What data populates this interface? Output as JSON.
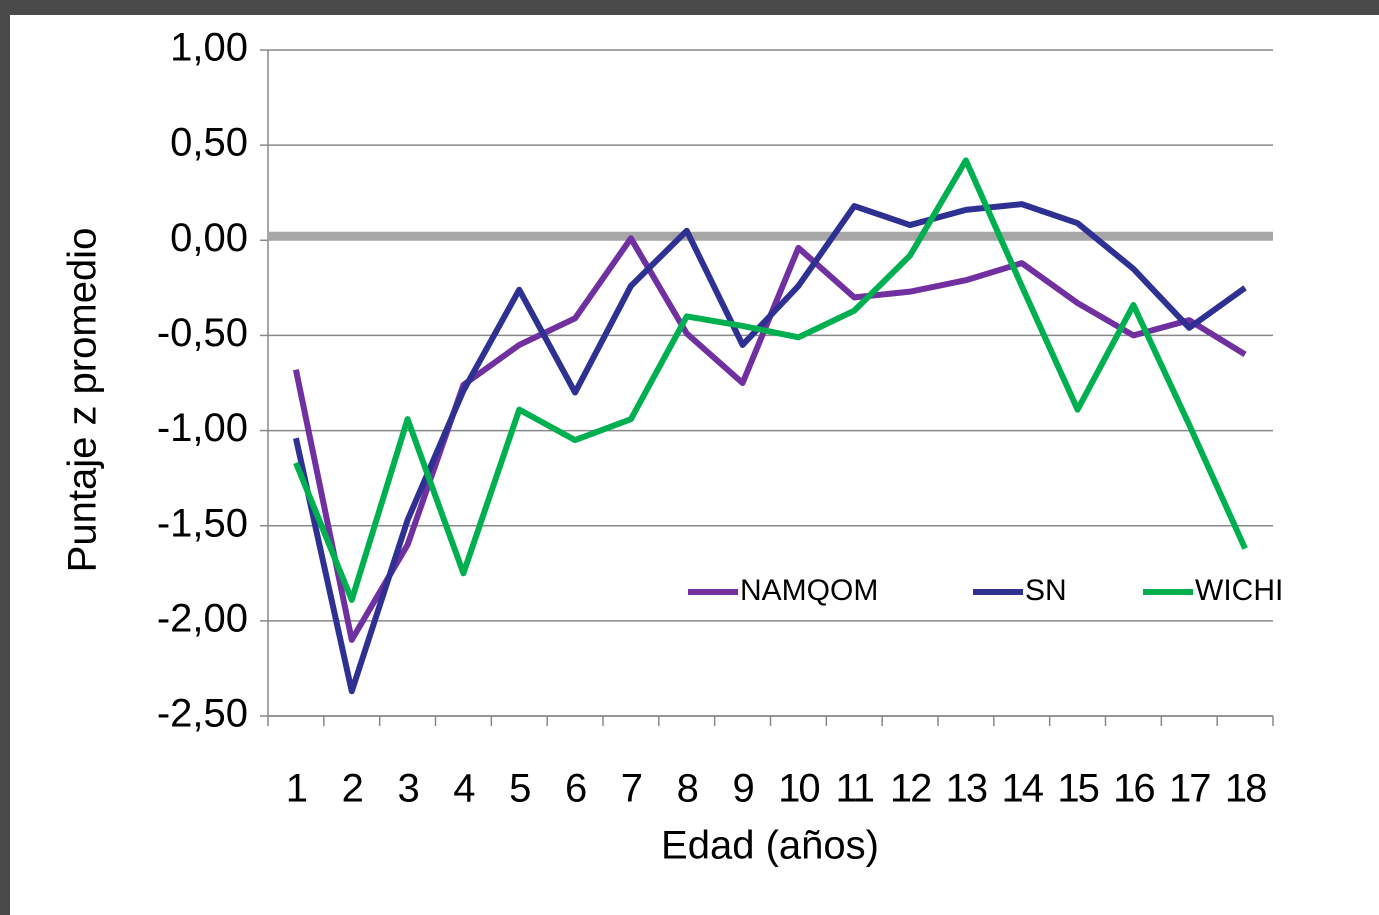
{
  "chart_data": {
    "type": "line",
    "x_label": "Edad (años)",
    "y_label": "Puntaje z promedio",
    "categories": [
      "1",
      "2",
      "3",
      "4",
      "5",
      "6",
      "7",
      "8",
      "9",
      "10",
      "11",
      "12",
      "13",
      "14",
      "15",
      "16",
      "17",
      "18"
    ],
    "series": [
      {
        "name": "NAMQOM",
        "color": "#7030a0",
        "values": [
          -0.68,
          -2.1,
          -1.6,
          -0.76,
          -0.55,
          -0.41,
          0.01,
          -0.49,
          -0.75,
          -0.04,
          -0.3,
          -0.27,
          -0.21,
          -0.12,
          -0.33,
          -0.5,
          -0.42,
          -0.6
        ]
      },
      {
        "name": "SN",
        "color": "#2e3192",
        "values": [
          -1.04,
          -2.37,
          -1.47,
          -0.79,
          -0.26,
          -0.8,
          -0.24,
          0.05,
          -0.55,
          -0.24,
          0.18,
          0.08,
          0.16,
          0.19,
          0.09,
          -0.15,
          -0.46,
          -0.25
        ]
      },
      {
        "name": "WICHI",
        "color": "#00b050",
        "values": [
          -1.17,
          -1.89,
          -0.94,
          -1.75,
          -0.89,
          -1.05,
          -0.94,
          -0.4,
          -0.45,
          -0.51,
          -0.37,
          -0.08,
          0.42,
          -0.24,
          -0.89,
          -0.34,
          -0.97,
          -1.62
        ]
      }
    ],
    "ylim": [
      -2.5,
      1
    ],
    "yticks": [
      {
        "value": -2.5,
        "label": "-2,50"
      },
      {
        "value": -2,
        "label": "-2,00"
      },
      {
        "value": -1.5,
        "label": "-1,50"
      },
      {
        "value": -1,
        "label": "-1,00"
      },
      {
        "value": -0.5,
        "label": "-0,50"
      },
      {
        "value": 0,
        "label": "0,00"
      },
      {
        "value": 0.5,
        "label": "0,50"
      },
      {
        "value": 1,
        "label": "1,00"
      }
    ],
    "grid": true,
    "legend": "lower right"
  }
}
